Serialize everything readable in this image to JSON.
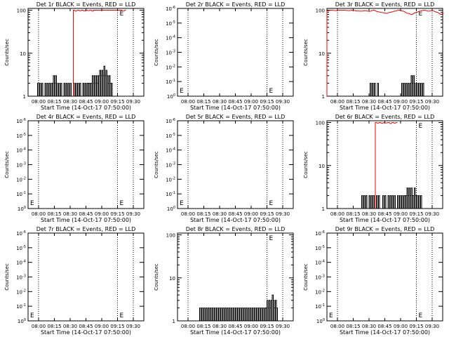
{
  "chart_data": [
    {
      "type": "line",
      "title": "Det 1r BLACK = Events, RED = LLD",
      "xlabel": "Start Time (14-Oct-17 07:50:00)",
      "ylabel": "Counts/sec",
      "yscale": "log",
      "y_tick_labels": [
        "1",
        "10",
        "100"
      ],
      "x_tick_labels": [
        "08:00",
        "08:15",
        "08:30",
        "08:45",
        "09:00",
        "09:15",
        "09:30"
      ],
      "annotation": "E",
      "series": [
        {
          "name": "Events",
          "color": "#000000",
          "x": [
            8,
            9,
            10,
            11,
            12,
            13,
            14,
            15,
            16,
            17,
            18,
            19,
            20,
            21,
            22,
            23,
            24,
            25,
            26,
            27,
            28,
            29,
            30,
            31,
            32,
            33,
            34,
            35,
            36,
            37,
            38,
            39,
            40,
            41,
            42,
            43,
            44,
            45,
            46,
            47,
            48,
            49,
            50,
            51,
            52,
            53,
            54,
            55,
            56,
            57,
            58,
            59,
            60,
            61,
            62,
            63,
            64,
            65,
            66,
            67,
            68,
            69,
            70,
            71,
            72,
            73,
            74,
            75,
            76,
            77,
            78,
            79,
            80
          ],
          "y": [
            1,
            2,
            1,
            2,
            1,
            2,
            1,
            1,
            2,
            1,
            2,
            1,
            2,
            1,
            2,
            2,
            3,
            2,
            3,
            2,
            1,
            2,
            1,
            2,
            1,
            1,
            2,
            1,
            2,
            1,
            2,
            1,
            2,
            1,
            1,
            2,
            1,
            2,
            1,
            2,
            1,
            2,
            1,
            1,
            2,
            1,
            2,
            1,
            2,
            2,
            2,
            2,
            2,
            3,
            2,
            3,
            2,
            3,
            2,
            3,
            4,
            3,
            4,
            3,
            5,
            3,
            4,
            3,
            2,
            3,
            2,
            2,
            1
          ]
        },
        {
          "name": "LLD",
          "color": "#ff0000",
          "x": [
            43,
            45,
            47,
            49,
            51,
            53,
            55,
            57,
            59,
            61,
            62,
            88,
            90,
            92
          ],
          "y": [
            100,
            95,
            100,
            97,
            100,
            96,
            100,
            98,
            100,
            95,
            100,
            100,
            95,
            100
          ]
        }
      ]
    },
    {
      "type": "line",
      "title": "Det 2r BLACK = Events, RED = LLD",
      "xlabel": "Start Time (14-Oct-17 07:50:00)",
      "ylabel": "Counts/sec",
      "yscale": "log",
      "y_tick_labels": [
        "10^0",
        "10^-1",
        "10^-2",
        "10^-3",
        "10^-4",
        "10^-5",
        "10^-6"
      ],
      "x_tick_labels": [
        "08:00",
        "08:15",
        "08:30",
        "08:45",
        "09:00",
        "09:15",
        "09:30"
      ],
      "annotation": "E",
      "series": []
    },
    {
      "type": "line",
      "title": "Det 3r BLACK = Events, RED = LLD",
      "xlabel": "Start Time (14-Oct-17 07:50:00)",
      "ylabel": "Counts/sec",
      "yscale": "log",
      "y_tick_labels": [
        "1",
        "10",
        "100"
      ],
      "x_tick_labels": [
        "08:00",
        "08:15",
        "08:30",
        "08:45",
        "09:00",
        "09:15",
        "09:30"
      ],
      "annotation": "E",
      "series": [
        {
          "name": "Events",
          "color": "#000000",
          "x": [
            40,
            41,
            42,
            43,
            44,
            45,
            46,
            47,
            48,
            49,
            70,
            71,
            72,
            73,
            74,
            75,
            76,
            77,
            78,
            79,
            80,
            81,
            82,
            83,
            84,
            85,
            86,
            87,
            88,
            89,
            90,
            91,
            92,
            93
          ],
          "y": [
            1,
            2,
            1,
            2,
            1,
            2,
            1,
            1,
            2,
            1,
            1,
            2,
            1,
            2,
            1,
            2,
            1,
            2,
            1,
            2,
            3,
            2,
            3,
            2,
            1,
            2,
            1,
            2,
            1,
            2,
            1,
            2,
            1,
            1
          ]
        },
        {
          "name": "LLD",
          "color": "#ff0000",
          "x": [
            0,
            4,
            8,
            12,
            16,
            20,
            24,
            28,
            32,
            36,
            40,
            44,
            48,
            52,
            56,
            60,
            64,
            68,
            72,
            76,
            80,
            84,
            88,
            92,
            96,
            100,
            104,
            108,
            110
          ],
          "y": [
            97,
            100,
            98,
            100,
            100,
            98,
            100,
            96,
            95,
            97,
            94,
            100,
            92,
            88,
            85,
            90,
            95,
            100,
            95,
            85,
            80,
            88,
            95,
            100,
            95,
            97,
            90,
            80,
            85
          ]
        }
      ]
    },
    {
      "type": "line",
      "title": "Det 4r BLACK = Events, RED = LLD",
      "xlabel": "Start Time (14-Oct-17 07:50:00)",
      "ylabel": "Counts/sec",
      "yscale": "log",
      "y_tick_labels": [
        "10^0",
        "10^-1",
        "10^-2",
        "10^-3",
        "10^-4",
        "10^-5",
        "10^-6"
      ],
      "x_tick_labels": [
        "08:00",
        "08:15",
        "08:30",
        "08:45",
        "09:00",
        "09:15",
        "09:30"
      ],
      "annotation": "E",
      "series": []
    },
    {
      "type": "line",
      "title": "Det 5r BLACK = Events, RED = LLD",
      "xlabel": "Start Time (14-Oct-17 07:50:00)",
      "ylabel": "Counts/sec",
      "yscale": "log",
      "y_tick_labels": [
        "10^0",
        "10^-1",
        "10^-2",
        "10^-3",
        "10^-4",
        "10^-5",
        "10^-6"
      ],
      "x_tick_labels": [
        "08:00",
        "08:15",
        "08:30",
        "08:45",
        "09:00",
        "09:15",
        "09:30"
      ],
      "annotation": "E",
      "series": []
    },
    {
      "type": "line",
      "title": "Det 6r BLACK = Events, RED = LLD",
      "xlabel": "Start Time (14-Oct-17 07:50:00)",
      "ylabel": "Counts/sec",
      "yscale": "log",
      "y_tick_labels": [
        "1",
        "10",
        "100"
      ],
      "x_tick_labels": [
        "08:00",
        "08:15",
        "08:30",
        "08:45",
        "09:00",
        "09:15",
        "09:30"
      ],
      "annotation": "E",
      "series": [
        {
          "name": "Events",
          "color": "#000000",
          "x": [
            32,
            33,
            34,
            35,
            36,
            37,
            38,
            39,
            40,
            41,
            42,
            43,
            44,
            45,
            46,
            47,
            48,
            49,
            50,
            51,
            52,
            53,
            54,
            55,
            56,
            57,
            58,
            59,
            60,
            61,
            62,
            63,
            64,
            65,
            66,
            67,
            68,
            69,
            70,
            71,
            72,
            73,
            74,
            75,
            76,
            77,
            78,
            79,
            80,
            81,
            82,
            83,
            84,
            85,
            86,
            87,
            88,
            89,
            90,
            91,
            92
          ],
          "y": [
            1,
            2,
            1,
            2,
            1,
            2,
            1,
            1,
            2,
            1,
            2,
            1,
            2,
            1,
            1,
            2,
            1,
            2,
            1,
            1,
            1,
            2,
            1,
            2,
            1,
            1,
            2,
            1,
            2,
            1,
            2,
            1,
            2,
            1,
            1,
            2,
            1,
            2,
            1,
            2,
            1,
            2,
            2,
            2,
            3,
            2,
            3,
            2,
            3,
            2,
            2,
            3,
            2,
            2,
            1,
            2,
            1,
            2,
            1,
            1,
            1
          ]
        },
        {
          "name": "LLD",
          "color": "#ff0000",
          "x": [
            46,
            48,
            50,
            52,
            54,
            56,
            58,
            60,
            62,
            64,
            66
          ],
          "y": [
            100,
            97,
            100,
            96,
            100,
            98,
            100,
            95,
            100,
            97,
            100
          ]
        }
      ]
    },
    {
      "type": "line",
      "title": "Det 7r BLACK = Events, RED = LLD",
      "xlabel": "Start Time (14-Oct-17 07:50:00)",
      "ylabel": "Counts/sec",
      "yscale": "log",
      "y_tick_labels": [
        "10^0",
        "10^-1",
        "10^-2",
        "10^-3",
        "10^-4",
        "10^-5",
        "10^-6"
      ],
      "x_tick_labels": [
        "08:00",
        "08:15",
        "08:30",
        "08:45",
        "09:00",
        "09:15",
        "09:30"
      ],
      "annotation": "E",
      "series": []
    },
    {
      "type": "line",
      "title": "Det 8r BLACK = Events, RED = LLD",
      "xlabel": "Start Time (14-Oct-17 07:50:00)",
      "ylabel": "Counts/sec",
      "yscale": "log",
      "y_tick_labels": [
        "1",
        "10",
        "100"
      ],
      "x_tick_labels": [
        "08:00",
        "08:15",
        "08:30",
        "08:45",
        "09:00",
        "09:15",
        "09:30"
      ],
      "annotation": "E",
      "series": [
        {
          "name": "Events",
          "color": "#000000",
          "x": [
            20,
            21,
            22,
            23,
            24,
            25,
            26,
            27,
            28,
            29,
            30,
            31,
            32,
            33,
            34,
            35,
            36,
            37,
            38,
            39,
            40,
            41,
            42,
            43,
            44,
            45,
            46,
            47,
            48,
            49,
            50,
            51,
            52,
            53,
            54,
            55,
            56,
            57,
            58,
            59,
            60,
            61,
            62,
            63,
            64,
            65,
            66,
            67,
            68,
            69,
            70,
            71,
            72,
            73,
            74,
            75,
            76,
            77,
            78,
            79,
            80,
            81,
            82,
            83,
            84,
            85,
            86,
            87,
            88,
            89,
            90,
            91,
            92,
            93,
            94,
            95
          ],
          "y": [
            1,
            2,
            1,
            2,
            1,
            2,
            1,
            2,
            1,
            2,
            1,
            2,
            1,
            2,
            1,
            2,
            1,
            2,
            1,
            2,
            1,
            2,
            1,
            2,
            1,
            2,
            1,
            2,
            1,
            2,
            1,
            2,
            1,
            2,
            1,
            2,
            1,
            2,
            1,
            2,
            1,
            2,
            1,
            2,
            1,
            2,
            1,
            2,
            1,
            2,
            1,
            2,
            1,
            2,
            1,
            2,
            1,
            2,
            1,
            2,
            1,
            2,
            1,
            2,
            2,
            3,
            2,
            3,
            2,
            3,
            4,
            3,
            2,
            3,
            2,
            1
          ]
        }
      ]
    },
    {
      "type": "line",
      "title": "Det 9r BLACK = Events, RED = LLD",
      "xlabel": "Start Time (14-Oct-17 07:50:00)",
      "ylabel": "Counts/sec",
      "yscale": "log",
      "y_tick_labels": [
        "10^0",
        "10^-1",
        "10^-2",
        "10^-3",
        "10^-4",
        "10^-5",
        "10^-6"
      ],
      "x_tick_labels": [
        "08:00",
        "08:15",
        "08:30",
        "08:45",
        "09:00",
        "09:15",
        "09:30"
      ],
      "annotation": "E",
      "series": []
    }
  ]
}
